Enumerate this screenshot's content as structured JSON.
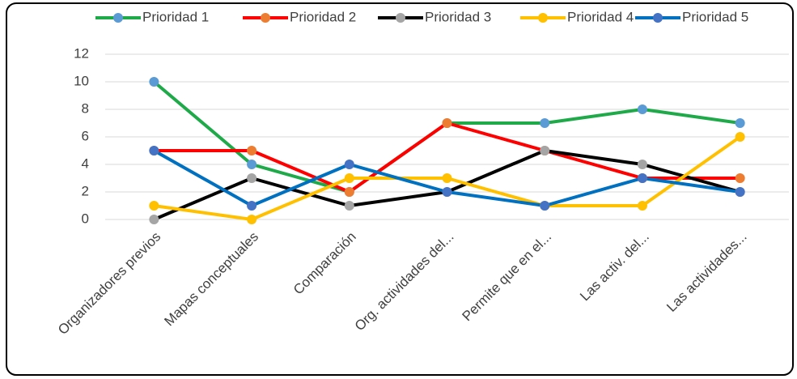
{
  "chart_data": {
    "type": "line",
    "categories": [
      "Organizadores previos",
      "Mapas conceptuales",
      "Comparación",
      "Org. actividades del...",
      "Permite que en el...",
      "Las activ. del...",
      "Las actividades..."
    ],
    "series": [
      {
        "name": "Prioridad 1",
        "color": "#1faa4a",
        "marker_color": "#5b9bd5",
        "values": [
          10,
          4,
          2,
          7,
          7,
          8,
          7
        ]
      },
      {
        "name": "Prioridad 2",
        "color": "#ff0000",
        "marker_color": "#ed7d31",
        "values": [
          5,
          5,
          2,
          7,
          5,
          3,
          3
        ]
      },
      {
        "name": "Prioridad 3",
        "color": "#000000",
        "marker_color": "#a5a5a5",
        "values": [
          0,
          3,
          1,
          2,
          5,
          4,
          2
        ]
      },
      {
        "name": "Prioridad 4",
        "color": "#ffc000",
        "marker_color": "#ffc000",
        "values": [
          1,
          0,
          3,
          3,
          1,
          1,
          6
        ]
      },
      {
        "name": "Prioridad 5",
        "color": "#0070c0",
        "marker_color": "#4472c4",
        "values": [
          5,
          1,
          4,
          2,
          1,
          3,
          2
        ]
      }
    ],
    "ylim": [
      0,
      12
    ],
    "yticks": [
      0,
      2,
      4,
      6,
      8,
      10,
      12
    ],
    "grid": true,
    "legend": "top"
  }
}
